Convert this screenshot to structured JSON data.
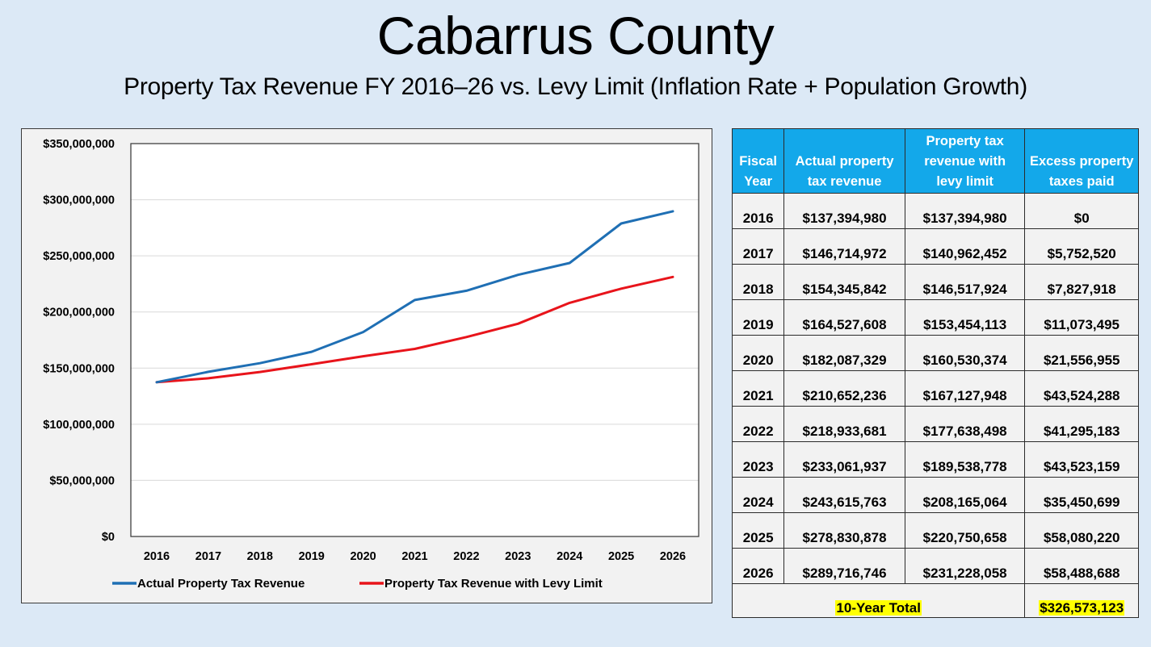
{
  "header": {
    "title": "Cabarrus County",
    "subtitle": "Property Tax Revenue FY 2016–26 vs. Levy Limit (Inflation Rate + Population Growth)"
  },
  "chart_data": {
    "type": "line",
    "title": "",
    "xlabel": "",
    "ylabel": "",
    "x": [
      "2016",
      "2017",
      "2018",
      "2019",
      "2020",
      "2021",
      "2022",
      "2023",
      "2024",
      "2025",
      "2026"
    ],
    "ylim": [
      0,
      350000000
    ],
    "yticks": [
      0,
      50000000,
      100000000,
      150000000,
      200000000,
      250000000,
      300000000,
      350000000
    ],
    "ytick_labels": [
      "$0",
      "$50,000,000",
      "$100,000,000",
      "$150,000,000",
      "$200,000,000",
      "$250,000,000",
      "$300,000,000",
      "$350,000,000"
    ],
    "grid": true,
    "legend_position": "bottom",
    "series": [
      {
        "name": "Actual Property Tax Revenue",
        "color": "#1f6fb4",
        "values": [
          137394980,
          146714972,
          154345842,
          164527608,
          182087329,
          210652236,
          218933681,
          233061937,
          243615763,
          278830878,
          289716746
        ]
      },
      {
        "name": "Property Tax Revenue with Levy Limit",
        "color": "#e8141b",
        "values": [
          137394980,
          140962452,
          146517924,
          153454113,
          160530374,
          167127948,
          177638498,
          189538778,
          208165064,
          220750658,
          231228058
        ]
      }
    ]
  },
  "table": {
    "headers": [
      [
        "Fiscal",
        "Year"
      ],
      [
        "Actual property",
        "tax revenue"
      ],
      [
        "Property tax",
        "revenue with",
        "levy limit"
      ],
      [
        "Excess property",
        "taxes paid"
      ]
    ],
    "rows": [
      [
        "2016",
        "$137,394,980",
        "$137,394,980",
        "$0"
      ],
      [
        "2017",
        "$146,714,972",
        "$140,962,452",
        "$5,752,520"
      ],
      [
        "2018",
        "$154,345,842",
        "$146,517,924",
        "$7,827,918"
      ],
      [
        "2019",
        "$164,527,608",
        "$153,454,113",
        "$11,073,495"
      ],
      [
        "2020",
        "$182,087,329",
        "$160,530,374",
        "$21,556,955"
      ],
      [
        "2021",
        "$210,652,236",
        "$167,127,948",
        "$43,524,288"
      ],
      [
        "2022",
        "$218,933,681",
        "$177,638,498",
        "$41,295,183"
      ],
      [
        "2023",
        "$233,061,937",
        "$189,538,778",
        "$43,523,159"
      ],
      [
        "2024",
        "$243,615,763",
        "$208,165,064",
        "$35,450,699"
      ],
      [
        "2025",
        "$278,830,878",
        "$220,750,658",
        "$58,080,220"
      ],
      [
        "2026",
        "$289,716,746",
        "$231,228,058",
        "$58,488,688"
      ]
    ],
    "total_label": "10-Year Total",
    "total_value": "$326,573,123"
  },
  "colors": {
    "background": "#dce9f6",
    "header_fill": "#13a8ea",
    "highlight": "#ffff00"
  }
}
